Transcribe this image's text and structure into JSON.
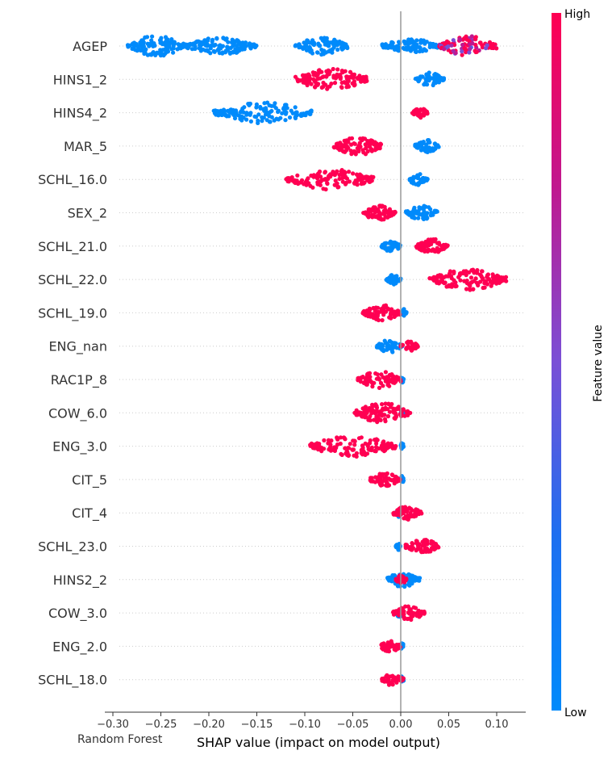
{
  "model_label": "Random Forest",
  "chart_data": {
    "type": "scatter",
    "subtype": "shap-beeswarm",
    "xlabel": "SHAP value (impact on model output)",
    "xlim": [
      -0.31,
      0.13
    ],
    "x_ticks": [
      -0.3,
      -0.25,
      -0.2,
      -0.15,
      -0.1,
      -0.05,
      0.0,
      0.05,
      0.1
    ],
    "x_tick_labels": [
      "−0.30",
      "−0.25",
      "−0.20",
      "−0.15",
      "−0.10",
      "−0.05",
      "0.00",
      "0.05",
      "0.10"
    ],
    "grid": false,
    "colorbar": {
      "label": "Feature value",
      "high_label": "High",
      "low_label": "Low",
      "low_color": "#008afb",
      "high_color": "#ff0052"
    },
    "features": [
      {
        "name": "AGEP",
        "low": [
          [
            -0.285,
            -0.225,
            1.0
          ],
          [
            -0.225,
            -0.15,
            0.8
          ],
          [
            -0.11,
            -0.055,
            0.9
          ],
          [
            -0.02,
            0.04,
            0.7
          ]
        ],
        "high": [
          [
            0.04,
            0.1,
            1.0
          ]
        ],
        "mixed": true
      },
      {
        "name": "HINS1_2",
        "low": [
          [
            0.015,
            0.045,
            1.0
          ]
        ],
        "high": [
          [
            -0.11,
            -0.035,
            1.0
          ]
        ]
      },
      {
        "name": "HINS4_2",
        "low": [
          [
            -0.195,
            -0.092,
            1.0
          ]
        ],
        "high": [
          [
            0.012,
            0.028,
            1.0
          ]
        ]
      },
      {
        "name": "MAR_5",
        "low": [
          [
            0.015,
            0.04,
            1.0
          ]
        ],
        "high": [
          [
            -0.07,
            -0.02,
            1.0
          ]
        ]
      },
      {
        "name": "SCHL_16.0",
        "low": [
          [
            0.008,
            0.028,
            1.0
          ]
        ],
        "high": [
          [
            -0.12,
            -0.028,
            1.0
          ]
        ]
      },
      {
        "name": "SEX_2",
        "low": [
          [
            0.005,
            0.038,
            1.0
          ]
        ],
        "high": [
          [
            -0.04,
            -0.005,
            1.0
          ]
        ]
      },
      {
        "name": "SCHL_21.0",
        "low": [
          [
            -0.02,
            0.0,
            1.0
          ]
        ],
        "high": [
          [
            0.015,
            0.05,
            1.0
          ]
        ]
      },
      {
        "name": "SCHL_22.0",
        "low": [
          [
            -0.015,
            0.0,
            1.0
          ]
        ],
        "high": [
          [
            0.03,
            0.11,
            1.0
          ]
        ]
      },
      {
        "name": "SCHL_19.0",
        "low": [
          [
            0.0,
            0.006,
            1.0
          ]
        ],
        "high": [
          [
            -0.04,
            0.0,
            1.0
          ]
        ]
      },
      {
        "name": "ENG_nan",
        "low": [
          [
            -0.025,
            0.002,
            1.0
          ]
        ],
        "high": [
          [
            0.0,
            0.018,
            1.0
          ]
        ]
      },
      {
        "name": "RAC1P_8",
        "low": [
          [
            0.0,
            0.003,
            1.0
          ]
        ],
        "high": [
          [
            -0.045,
            0.0,
            1.0
          ]
        ]
      },
      {
        "name": "COW_6.0",
        "low": [
          [
            0.0,
            0.003,
            1.0
          ]
        ],
        "high": [
          [
            -0.048,
            0.01,
            1.0
          ]
        ]
      },
      {
        "name": "ENG_3.0",
        "low": [
          [
            0.0,
            0.003,
            1.0
          ]
        ],
        "high": [
          [
            -0.095,
            -0.005,
            1.0
          ]
        ]
      },
      {
        "name": "CIT_5",
        "low": [
          [
            0.0,
            0.003,
            1.0
          ]
        ],
        "high": [
          [
            -0.032,
            0.0,
            1.0
          ]
        ]
      },
      {
        "name": "CIT_4",
        "low": [
          [
            -0.005,
            0.002,
            1.0
          ]
        ],
        "high": [
          [
            -0.008,
            0.022,
            1.0
          ]
        ]
      },
      {
        "name": "SCHL_23.0",
        "low": [
          [
            -0.005,
            0.0,
            1.0
          ]
        ],
        "high": [
          [
            0.005,
            0.04,
            1.0
          ]
        ]
      },
      {
        "name": "HINS2_2",
        "low": [
          [
            -0.015,
            0.02,
            1.0
          ]
        ],
        "high": [
          [
            -0.005,
            0.006,
            1.0
          ]
        ]
      },
      {
        "name": "COW_3.0",
        "low": [
          [
            -0.005,
            0.002,
            1.0
          ]
        ],
        "high": [
          [
            -0.008,
            0.025,
            1.0
          ]
        ]
      },
      {
        "name": "ENG_2.0",
        "low": [
          [
            0.0,
            0.003,
            1.0
          ]
        ],
        "high": [
          [
            -0.022,
            0.0,
            1.0
          ]
        ]
      },
      {
        "name": "SCHL_18.0",
        "low": [
          [
            0.0,
            0.003,
            1.0
          ]
        ],
        "high": [
          [
            -0.02,
            0.003,
            1.0
          ]
        ]
      }
    ]
  }
}
